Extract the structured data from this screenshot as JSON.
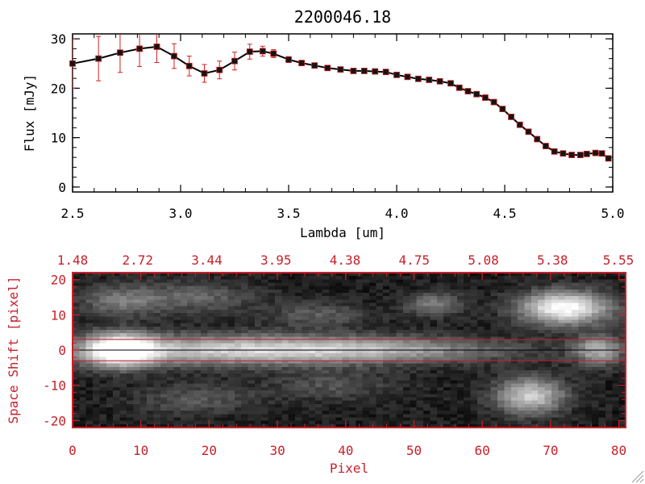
{
  "title": "2200046.18",
  "colors": {
    "axis_top": "#000000",
    "axis_bottom": "#c8202a",
    "marker": "#141414",
    "error_bar": "#d02020"
  },
  "chart_data": [
    {
      "type": "line",
      "title": "2200046.18",
      "xlabel": "Lambda [um]",
      "ylabel": "Flux [mJy]",
      "xlim": [
        2.5,
        5.0
      ],
      "ylim": [
        -1,
        31
      ],
      "xticks": [
        "2.5",
        "3.0",
        "3.5",
        "4.0",
        "4.5",
        "5.0"
      ],
      "yticks": [
        "0",
        "10",
        "20",
        "30"
      ],
      "series": [
        {
          "name": "flux",
          "x": [
            2.5,
            2.62,
            2.72,
            2.81,
            2.89,
            2.97,
            3.04,
            3.11,
            3.18,
            3.25,
            3.32,
            3.38,
            3.43,
            3.5,
            3.56,
            3.62,
            3.68,
            3.74,
            3.8,
            3.85,
            3.9,
            3.95,
            4.0,
            4.05,
            4.1,
            4.15,
            4.2,
            4.25,
            4.29,
            4.33,
            4.37,
            4.41,
            4.45,
            4.49,
            4.53,
            4.57,
            4.61,
            4.65,
            4.69,
            4.73,
            4.77,
            4.81,
            4.85,
            4.88,
            4.92,
            4.95,
            4.98
          ],
          "y": [
            25.0,
            26.0,
            27.2,
            28.0,
            28.4,
            26.5,
            24.5,
            23.0,
            23.7,
            25.5,
            27.4,
            27.5,
            27.0,
            25.8,
            25.1,
            24.6,
            24.1,
            23.8,
            23.5,
            23.5,
            23.4,
            23.3,
            22.7,
            22.3,
            21.9,
            21.7,
            21.4,
            21.0,
            20.1,
            19.4,
            18.8,
            18.1,
            17.2,
            15.8,
            14.2,
            12.6,
            11.2,
            9.7,
            8.3,
            7.2,
            6.8,
            6.5,
            6.5,
            6.7,
            6.9,
            6.8,
            5.8
          ],
          "err": [
            5.0,
            4.5,
            4.0,
            3.6,
            3.2,
            2.5,
            2.0,
            1.8,
            1.8,
            1.8,
            1.5,
            1.0,
            0.8,
            0.6,
            0.5,
            0.5,
            0.5,
            0.5,
            0.5,
            0.5,
            0.5,
            0.5,
            0.5,
            0.5,
            0.5,
            0.5,
            0.5,
            0.5,
            0.5,
            0.5,
            0.5,
            0.5,
            0.5,
            0.5,
            0.5,
            0.5,
            0.5,
            0.5,
            0.5,
            0.5,
            0.5,
            0.5,
            0.5,
            0.5,
            0.5,
            0.5,
            0.5
          ]
        }
      ]
    },
    {
      "type": "heatmap",
      "xlabel": "Pixel",
      "ylabel": "Space Shift [pixel]",
      "xlim": [
        0,
        81
      ],
      "ylim": [
        -22,
        22
      ],
      "xticks": [
        "0",
        "10",
        "20",
        "30",
        "40",
        "50",
        "60",
        "70",
        "80"
      ],
      "yticks": [
        "-20",
        "-10",
        "0",
        "10",
        "20"
      ],
      "top_axis_ticks": [
        "1.48",
        "2.72",
        "3.44",
        "3.95",
        "4.38",
        "4.75",
        "5.08",
        "5.38",
        "5.55"
      ],
      "extraction_limits": [
        3,
        -3
      ],
      "centerline": 0,
      "sources": [
        {
          "x": 7,
          "y": 0,
          "sx": 3.5,
          "sy": 3.2,
          "amp": 1.0
        },
        {
          "x": 22,
          "y": 0,
          "sx": 16,
          "sy": 3.0,
          "amp": 0.62
        },
        {
          "x": 45,
          "y": 0,
          "sx": 14,
          "sy": 2.4,
          "amp": 0.42
        },
        {
          "x": 72,
          "y": 12,
          "sx": 4.5,
          "sy": 3.2,
          "amp": 0.95
        },
        {
          "x": 67,
          "y": -13,
          "sx": 3.5,
          "sy": 3.5,
          "amp": 0.7
        },
        {
          "x": 77,
          "y": 0,
          "sx": 2.5,
          "sy": 3,
          "amp": 0.55
        },
        {
          "x": 53,
          "y": 13,
          "sx": 3,
          "sy": 2.2,
          "amp": 0.35
        },
        {
          "x": 7,
          "y": 14,
          "sx": 4,
          "sy": 3,
          "amp": 0.32
        },
        {
          "x": 18,
          "y": 15,
          "sx": 6,
          "sy": 3,
          "amp": 0.25
        },
        {
          "x": 18,
          "y": -14,
          "sx": 6,
          "sy": 3,
          "amp": 0.2
        },
        {
          "x": 36,
          "y": 10,
          "sx": 5,
          "sy": 2.5,
          "amp": 0.22
        },
        {
          "x": 38,
          "y": -10,
          "sx": 6,
          "sy": 3,
          "amp": 0.18
        }
      ]
    }
  ]
}
